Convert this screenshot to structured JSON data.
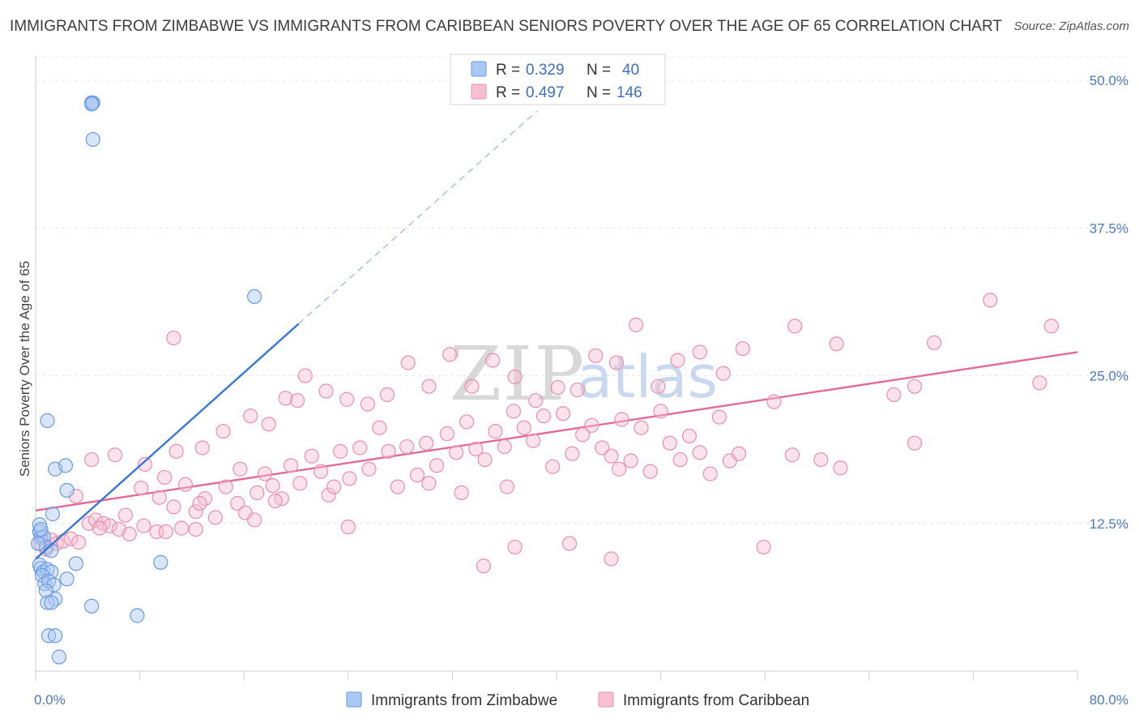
{
  "title": "IMMIGRANTS FROM ZIMBABWE VS IMMIGRANTS FROM CARIBBEAN SENIORS POVERTY OVER THE AGE OF 65 CORRELATION CHART",
  "source": "Source: ZipAtlas.com",
  "watermark": {
    "part1": "ZIP",
    "part2": "atlas"
  },
  "legend": {
    "r_label": "R =",
    "n_label": "N =",
    "rows": [
      {
        "r": "0.329",
        "n": "40",
        "color": "#aac8f4",
        "stroke": "#6a9ae0"
      },
      {
        "r": "0.497",
        "n": "146",
        "color": "#f7bfd2",
        "stroke": "#e890ae"
      }
    ]
  },
  "chart_data": {
    "type": "scatter",
    "title": "IMMIGRANTS FROM ZIMBABWE VS IMMIGRANTS FROM CARIBBEAN SENIORS POVERTY OVER THE AGE OF 65 CORRELATION CHART",
    "xlabel": "",
    "ylabel": "Seniors Poverty Over the Age of 65",
    "xlim": [
      0,
      80
    ],
    "ylim": [
      0,
      52
    ],
    "x_tick_labels": [
      "0.0%",
      "80.0%"
    ],
    "y_ticks": [
      12.5,
      25.0,
      37.5,
      50.0
    ],
    "y_tick_labels": [
      "12.5%",
      "25.0%",
      "37.5%",
      "50.0%"
    ],
    "grid": true,
    "legend_position": "top-center",
    "series": [
      {
        "name": "Immigrants from Zimbabwe",
        "color": "#aac8f4",
        "stroke": "#6a9ae0",
        "trend_color": "#3a78d4",
        "trend": {
          "x0": 0.0,
          "y0": 9.5,
          "x1": 20.2,
          "y1": 29.4,
          "dash_to_x": 38.5,
          "dash_to_y": 47.4
        },
        "points": [
          [
            4.3,
            48.1
          ],
          [
            4.3,
            48.0
          ],
          [
            4.4,
            48.1
          ],
          [
            4.3,
            48.0
          ],
          [
            0.3,
            11.8
          ],
          [
            0.4,
            11.3
          ],
          [
            0.6,
            11.4
          ],
          [
            0.8,
            10.5
          ],
          [
            1.2,
            10.2
          ],
          [
            0.2,
            10.8
          ],
          [
            0.3,
            9.0
          ],
          [
            0.4,
            8.7
          ],
          [
            0.6,
            8.4
          ],
          [
            0.9,
            8.6
          ],
          [
            1.2,
            8.4
          ],
          [
            0.5,
            8.1
          ],
          [
            0.7,
            7.4
          ],
          [
            1.0,
            7.6
          ],
          [
            1.4,
            7.3
          ],
          [
            2.4,
            7.8
          ],
          [
            3.1,
            9.1
          ],
          [
            9.6,
            9.2
          ],
          [
            0.8,
            6.8
          ],
          [
            1.5,
            6.1
          ],
          [
            0.9,
            5.8
          ],
          [
            1.2,
            5.8
          ],
          [
            4.3,
            5.5
          ],
          [
            1.0,
            3.0
          ],
          [
            1.5,
            3.0
          ],
          [
            1.8,
            1.2
          ],
          [
            7.8,
            4.7
          ],
          [
            0.9,
            21.2
          ],
          [
            1.5,
            17.1
          ],
          [
            2.3,
            17.4
          ],
          [
            2.4,
            15.3
          ],
          [
            1.3,
            13.3
          ],
          [
            16.8,
            31.7
          ],
          [
            4.4,
            45.0
          ],
          [
            0.3,
            12.4
          ],
          [
            0.4,
            12.0
          ]
        ]
      },
      {
        "name": "Immigrants from Caribbean",
        "color": "#f7bfd2",
        "stroke": "#e890ae",
        "trend_color": "#e06b98",
        "trend": {
          "x0": 0.0,
          "y0": 13.6,
          "x1": 80.0,
          "y1": 27.0
        },
        "points": [
          [
            0.4,
            10.8
          ],
          [
            0.8,
            10.3
          ],
          [
            1.2,
            11.1
          ],
          [
            1.6,
            10.8
          ],
          [
            2.1,
            11.0
          ],
          [
            2.7,
            11.2
          ],
          [
            3.3,
            10.9
          ],
          [
            4.1,
            12.5
          ],
          [
            4.6,
            12.8
          ],
          [
            5.2,
            12.5
          ],
          [
            5.7,
            12.3
          ],
          [
            6.4,
            12.0
          ],
          [
            7.2,
            11.6
          ],
          [
            8.3,
            12.3
          ],
          [
            9.3,
            11.8
          ],
          [
            10.0,
            11.8
          ],
          [
            11.2,
            12.1
          ],
          [
            12.3,
            12.0
          ],
          [
            3.1,
            14.8
          ],
          [
            4.9,
            12.1
          ],
          [
            6.9,
            13.2
          ],
          [
            8.1,
            15.5
          ],
          [
            9.5,
            14.7
          ],
          [
            10.6,
            13.9
          ],
          [
            11.5,
            15.8
          ],
          [
            12.3,
            13.5
          ],
          [
            13.0,
            14.6
          ],
          [
            13.8,
            13.0
          ],
          [
            14.6,
            15.6
          ],
          [
            15.5,
            14.2
          ],
          [
            16.1,
            13.4
          ],
          [
            17.0,
            15.1
          ],
          [
            17.6,
            16.7
          ],
          [
            18.2,
            15.7
          ],
          [
            18.9,
            14.6
          ],
          [
            19.6,
            17.4
          ],
          [
            20.3,
            15.9
          ],
          [
            21.2,
            18.2
          ],
          [
            21.9,
            16.9
          ],
          [
            22.5,
            14.9
          ],
          [
            23.4,
            18.6
          ],
          [
            24.1,
            16.3
          ],
          [
            24.9,
            18.9
          ],
          [
            25.6,
            17.1
          ],
          [
            26.4,
            20.6
          ],
          [
            27.1,
            18.6
          ],
          [
            27.8,
            15.6
          ],
          [
            28.5,
            19.0
          ],
          [
            29.3,
            16.6
          ],
          [
            30.0,
            19.3
          ],
          [
            30.8,
            17.4
          ],
          [
            31.6,
            20.1
          ],
          [
            32.3,
            18.5
          ],
          [
            33.1,
            21.1
          ],
          [
            33.8,
            18.8
          ],
          [
            34.5,
            17.9
          ],
          [
            35.3,
            20.3
          ],
          [
            36.0,
            19.0
          ],
          [
            36.7,
            22.0
          ],
          [
            37.5,
            20.6
          ],
          [
            38.2,
            19.5
          ],
          [
            39.0,
            21.6
          ],
          [
            39.7,
            17.3
          ],
          [
            40.5,
            21.8
          ],
          [
            41.2,
            18.4
          ],
          [
            42.0,
            20.0
          ],
          [
            42.7,
            20.8
          ],
          [
            43.5,
            18.9
          ],
          [
            44.2,
            18.2
          ],
          [
            45.0,
            21.3
          ],
          [
            45.7,
            17.8
          ],
          [
            46.5,
            20.6
          ],
          [
            47.2,
            16.9
          ],
          [
            48.0,
            22.0
          ],
          [
            48.7,
            19.3
          ],
          [
            49.5,
            17.9
          ],
          [
            50.2,
            19.9
          ],
          [
            51.0,
            18.5
          ],
          [
            51.8,
            16.7
          ],
          [
            52.5,
            21.5
          ],
          [
            53.3,
            17.8
          ],
          [
            54.0,
            18.4
          ],
          [
            4.3,
            17.9
          ],
          [
            6.1,
            18.3
          ],
          [
            8.4,
            17.5
          ],
          [
            9.9,
            16.4
          ],
          [
            10.8,
            18.6
          ],
          [
            12.8,
            18.9
          ],
          [
            14.4,
            20.3
          ],
          [
            15.7,
            17.1
          ],
          [
            16.5,
            21.6
          ],
          [
            17.9,
            20.9
          ],
          [
            19.2,
            23.1
          ],
          [
            20.1,
            22.9
          ],
          [
            20.7,
            25.0
          ],
          [
            22.3,
            23.7
          ],
          [
            23.9,
            23.0
          ],
          [
            25.5,
            22.6
          ],
          [
            27.0,
            23.4
          ],
          [
            28.6,
            26.1
          ],
          [
            30.2,
            24.1
          ],
          [
            31.8,
            26.8
          ],
          [
            33.5,
            24.1
          ],
          [
            35.1,
            26.3
          ],
          [
            36.8,
            24.9
          ],
          [
            38.4,
            22.9
          ],
          [
            40.1,
            24.0
          ],
          [
            41.6,
            23.8
          ],
          [
            43.0,
            26.7
          ],
          [
            44.6,
            26.1
          ],
          [
            46.1,
            29.3
          ],
          [
            47.8,
            24.1
          ],
          [
            49.3,
            26.3
          ],
          [
            51.0,
            27.0
          ],
          [
            52.8,
            25.2
          ],
          [
            54.3,
            27.3
          ],
          [
            56.7,
            22.8
          ],
          [
            58.3,
            29.2
          ],
          [
            61.5,
            27.7
          ],
          [
            65.9,
            23.4
          ],
          [
            67.5,
            24.1
          ],
          [
            69.0,
            27.8
          ],
          [
            73.3,
            31.4
          ],
          [
            77.1,
            24.4
          ],
          [
            78.0,
            29.2
          ],
          [
            67.5,
            19.3
          ],
          [
            58.1,
            18.3
          ],
          [
            60.3,
            17.9
          ],
          [
            61.8,
            17.2
          ],
          [
            44.8,
            17.1
          ],
          [
            36.2,
            15.6
          ],
          [
            22.9,
            15.6
          ],
          [
            10.6,
            28.2
          ],
          [
            18.4,
            14.4
          ],
          [
            16.8,
            12.8
          ],
          [
            12.6,
            14.2
          ],
          [
            30.2,
            15.9
          ],
          [
            32.7,
            15.1
          ],
          [
            24.0,
            12.2
          ],
          [
            34.4,
            8.9
          ],
          [
            36.8,
            10.5
          ],
          [
            41.0,
            10.8
          ],
          [
            44.2,
            9.5
          ],
          [
            55.9,
            10.5
          ]
        ]
      }
    ]
  }
}
